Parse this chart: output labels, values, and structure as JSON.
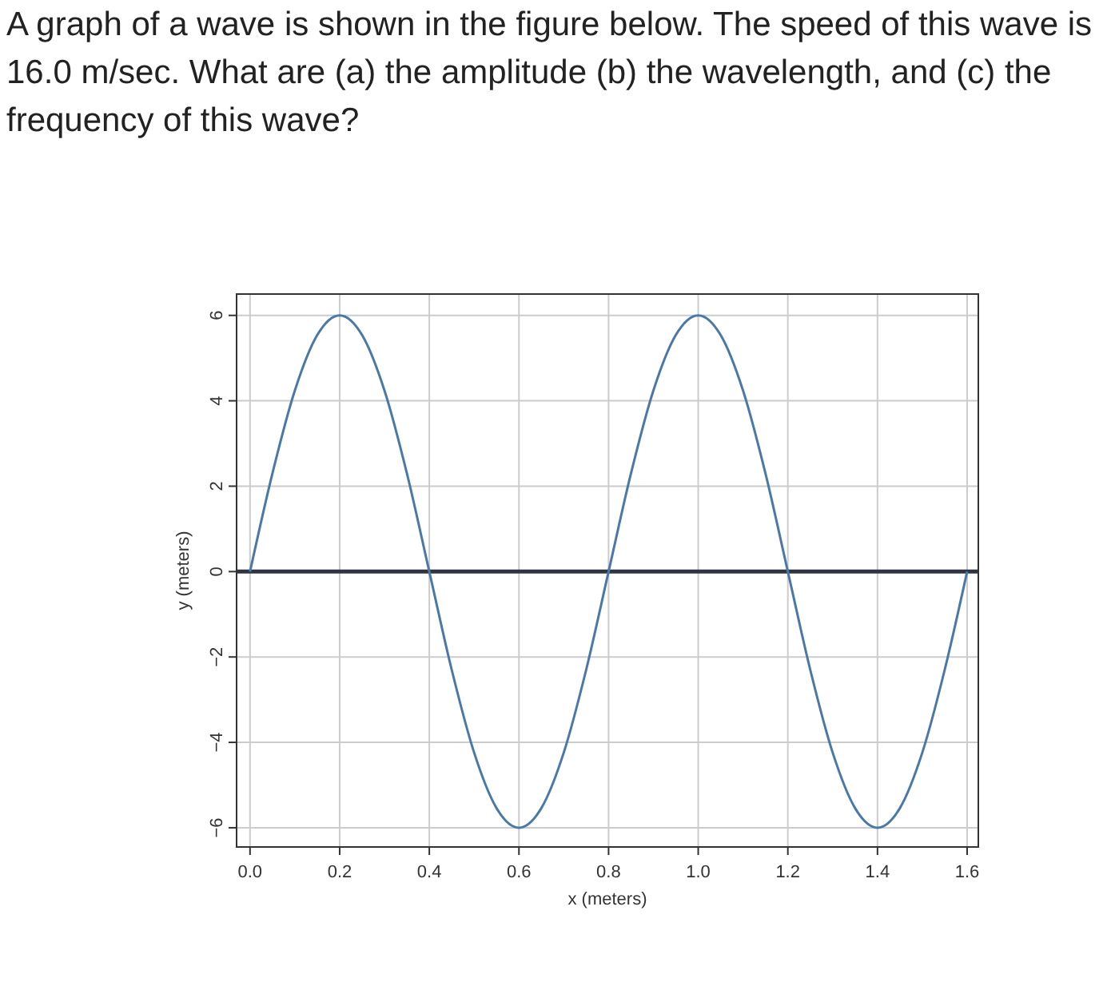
{
  "chart_data": {
    "type": "line",
    "title": "A graph of a wave is shown in the figure below. The speed of this wave is 16.0 m/sec. What are (a) the amplitude (b) the wavelength, and (c) the frequency of this wave?",
    "xlabel": "x (meters)",
    "ylabel": "y (meters)",
    "x": [
      0,
      0.05,
      0.1,
      0.15,
      0.2,
      0.25,
      0.3,
      0.35,
      0.4,
      0.45,
      0.5,
      0.55,
      0.6,
      0.65,
      0.7,
      0.75,
      0.8,
      0.85,
      0.9,
      0.95,
      1.0,
      1.05,
      1.1,
      1.15,
      1.2,
      1.25,
      1.3,
      1.35,
      1.4,
      1.45,
      1.5,
      1.55,
      1.6
    ],
    "series": [
      {
        "color": "#4a78a8",
        "values": [
          0,
          2.3,
          4.24,
          5.54,
          6,
          5.54,
          4.24,
          2.3,
          0,
          -2.3,
          -4.24,
          -5.54,
          -6,
          -5.54,
          -4.24,
          -2.3,
          0,
          2.3,
          4.24,
          5.54,
          6,
          5.54,
          4.24,
          2.3,
          0,
          -2.3,
          -4.24,
          -5.54,
          -6,
          -5.54,
          -4.24,
          -2.3,
          0
        ]
      }
    ],
    "xlim": [
      -0.03,
      1.625
    ],
    "ylim": [
      -6.45,
      6.5
    ],
    "xticks": [
      {
        "value": 0,
        "label": "0.0"
      },
      {
        "value": 0.2,
        "label": "0.2"
      },
      {
        "value": 0.4,
        "label": "0.4"
      },
      {
        "value": 0.6,
        "label": "0.6"
      },
      {
        "value": 0.8,
        "label": "0.8"
      },
      {
        "value": 1.0,
        "label": "1.0"
      },
      {
        "value": 1.2,
        "label": "1.2"
      },
      {
        "value": 1.4,
        "label": "1.4"
      },
      {
        "value": 1.6,
        "label": "1.6"
      }
    ],
    "yticks": [
      {
        "value": -6,
        "label": "−6"
      },
      {
        "value": -4,
        "label": "−4"
      },
      {
        "value": -2,
        "label": "−2"
      },
      0,
      2,
      4,
      6
    ],
    "ref_lines": [
      {
        "axis": "y",
        "value": 0,
        "color": "#2e3440"
      }
    ],
    "grid": true,
    "marker": "none",
    "line_style": "solid"
  }
}
